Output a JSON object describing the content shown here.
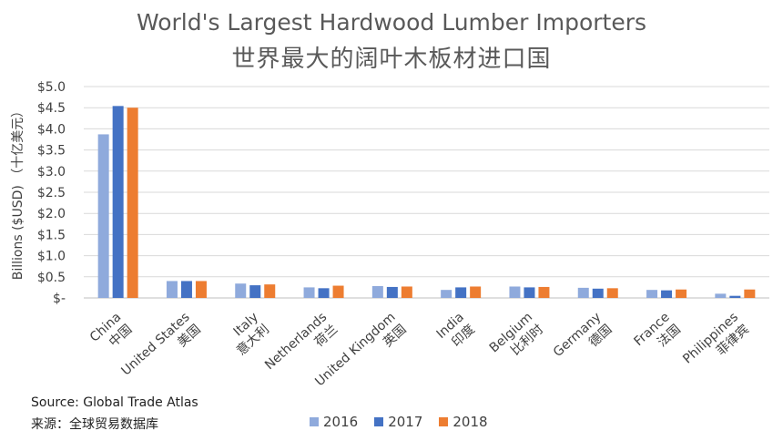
{
  "chart_data": {
    "type": "bar",
    "title": "World's Largest Hardwood Lumber Importers",
    "subtitle": "世界最大的阔叶木板材进口国",
    "ylabel": "Billions ($USD) （十亿美元）",
    "xlabel": "",
    "ylim": [
      0,
      5
    ],
    "yticks": [
      "$-",
      "$0.5",
      "$1.0",
      "$1.5",
      "$2.0",
      "$2.5",
      "$3.0",
      "$3.5",
      "$4.0",
      "$4.5",
      "$5.0"
    ],
    "grid": true,
    "legend_position": "bottom",
    "categories": [
      {
        "en": "China",
        "zh": "中国"
      },
      {
        "en": "United States",
        "zh": "美国"
      },
      {
        "en": "Italy",
        "zh": "意大利"
      },
      {
        "en": "Netherlands",
        "zh": "荷兰"
      },
      {
        "en": "United Kingdom",
        "zh": "英国"
      },
      {
        "en": "India",
        "zh": "印度"
      },
      {
        "en": "Belgium",
        "zh": "比利时"
      },
      {
        "en": "Germany",
        "zh": "德国"
      },
      {
        "en": "France",
        "zh": "法国"
      },
      {
        "en": "Philippines",
        "zh": "菲律宾"
      }
    ],
    "series": [
      {
        "name": "2016",
        "color": "#8faadc",
        "values": [
          3.87,
          0.4,
          0.34,
          0.25,
          0.28,
          0.19,
          0.27,
          0.24,
          0.19,
          0.1
        ]
      },
      {
        "name": "2017",
        "color": "#4472c4",
        "values": [
          4.54,
          0.4,
          0.3,
          0.23,
          0.26,
          0.25,
          0.25,
          0.22,
          0.18,
          0.05
        ]
      },
      {
        "name": "2018",
        "color": "#ed7d31",
        "values": [
          4.5,
          0.4,
          0.32,
          0.29,
          0.27,
          0.27,
          0.26,
          0.23,
          0.2,
          0.2
        ]
      }
    ]
  },
  "source": {
    "en": "Source: Global Trade Atlas",
    "zh": "来源：全球贸易数据库"
  }
}
